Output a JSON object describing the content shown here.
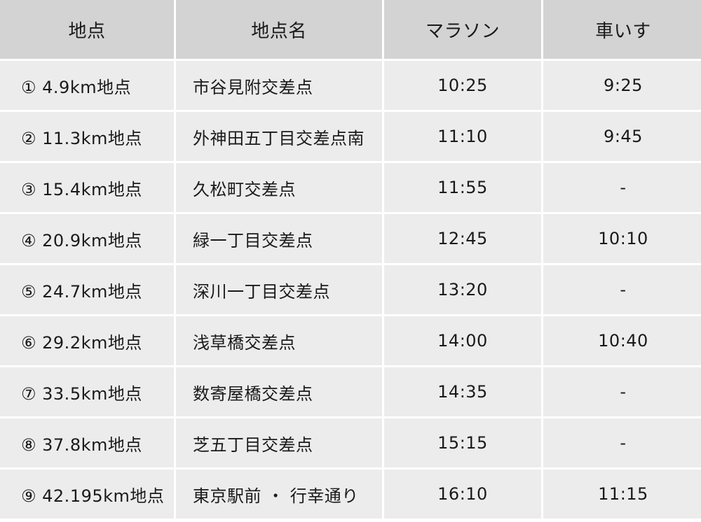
{
  "headers": {
    "point": "地点",
    "name": "地点名",
    "marathon": "マラソン",
    "wheelchair": "車いす"
  },
  "rows": [
    {
      "point": "① 4.9km地点",
      "name": "市谷見附交差点",
      "marathon": "10:25",
      "wheelchair": "9:25"
    },
    {
      "point": "② 11.3km地点",
      "name": "外神田五丁目交差点南",
      "marathon": "11:10",
      "wheelchair": "9:45"
    },
    {
      "point": "③ 15.4km地点",
      "name": "久松町交差点",
      "marathon": "11:55",
      "wheelchair": "-"
    },
    {
      "point": "④ 20.9km地点",
      "name": "緑一丁目交差点",
      "marathon": "12:45",
      "wheelchair": "10:10"
    },
    {
      "point": "⑤ 24.7km地点",
      "name": "深川一丁目交差点",
      "marathon": "13:20",
      "wheelchair": "-"
    },
    {
      "point": "⑥ 29.2km地点",
      "name": "浅草橋交差点",
      "marathon": "14:00",
      "wheelchair": "10:40"
    },
    {
      "point": "⑦ 33.5km地点",
      "name": "数寄屋橋交差点",
      "marathon": "14:35",
      "wheelchair": "-"
    },
    {
      "point": "⑧ 37.8km地点",
      "name": "芝五丁目交差点",
      "marathon": "15:15",
      "wheelchair": "-"
    },
    {
      "point": "⑨ 42.195km地点",
      "name": "東京駅前 ・ 行幸通り",
      "marathon": "16:10",
      "wheelchair": "11:15"
    }
  ],
  "colors": {
    "header_bg": "#d3d3d3",
    "row_bg": "#ececec",
    "text": "#1a1a1a"
  }
}
